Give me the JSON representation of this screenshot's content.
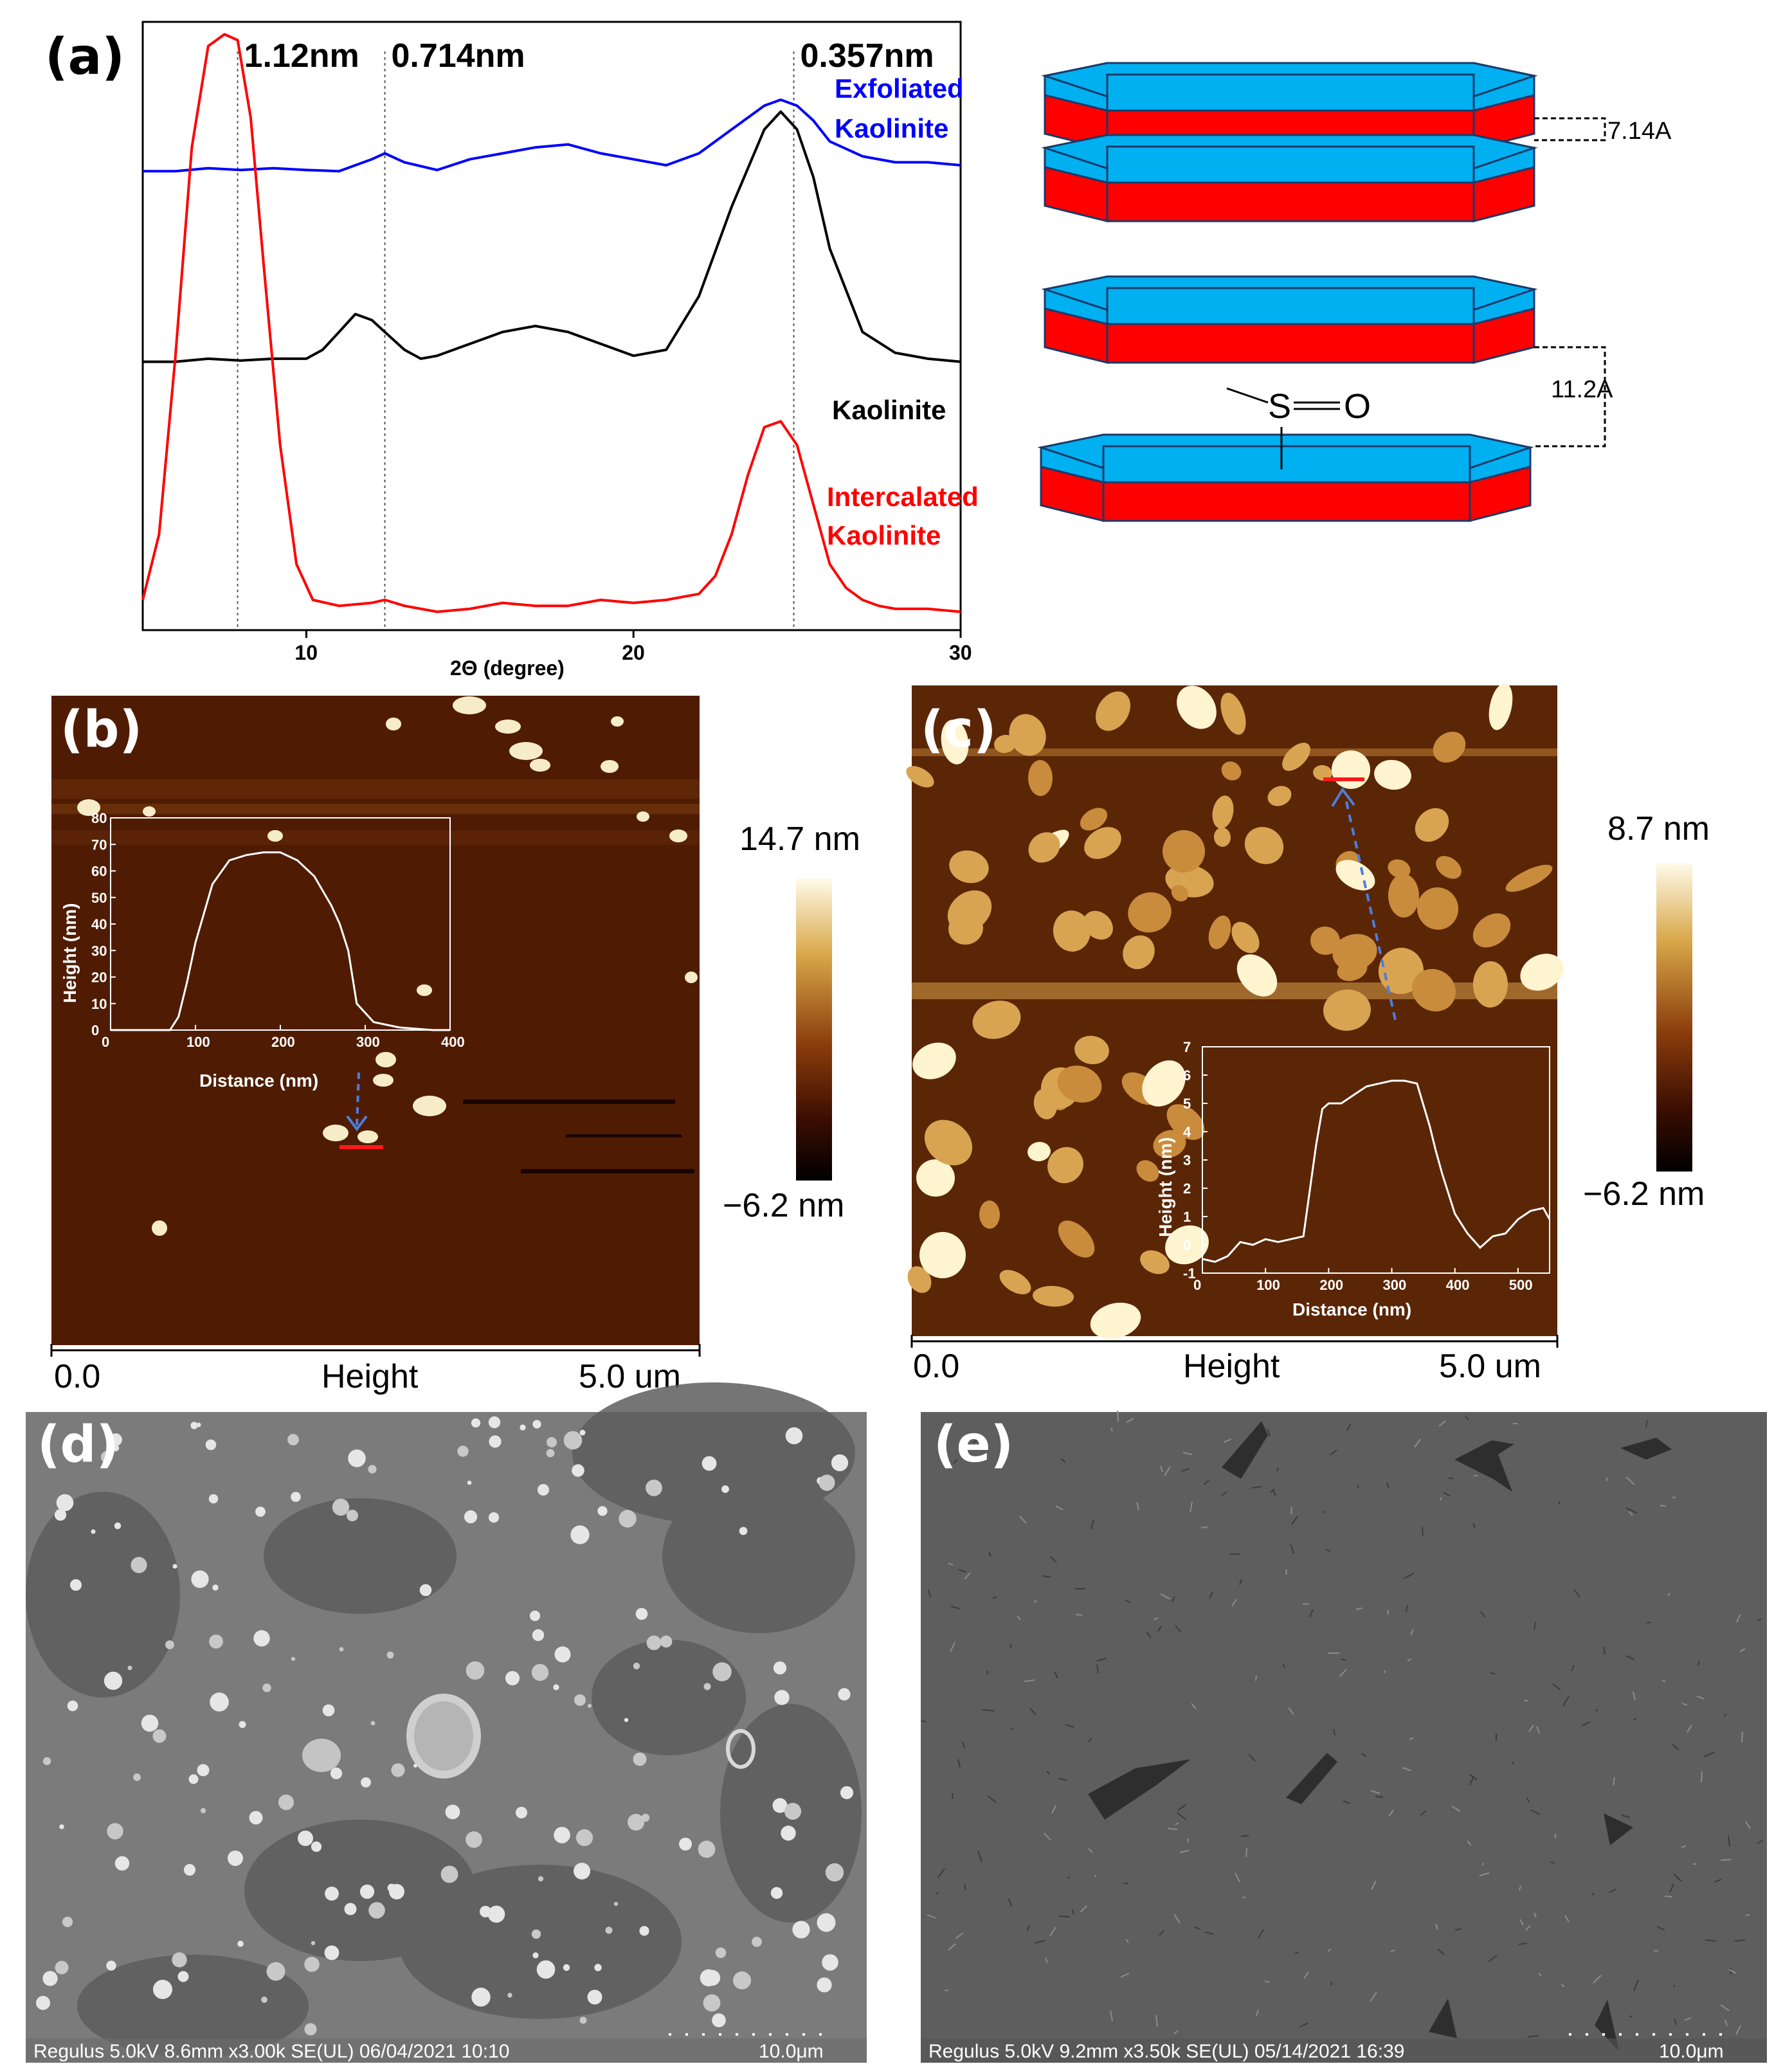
{
  "panels": {
    "a": "(a)",
    "b": "(b)",
    "c": "(c)",
    "d": "(d)",
    "e": "(e)"
  },
  "chart_data": [
    {
      "type": "line",
      "xlabel": "2Θ (degree)",
      "xlim": [
        5,
        30
      ],
      "x_ticks": [
        "10",
        "20",
        "30"
      ],
      "peak_labels": [
        "1.12nm",
        "0.714nm",
        "0.357nm"
      ],
      "peak_positions": [
        7.9,
        12.4,
        24.9
      ],
      "series": [
        {
          "name": "Exfoliated Kaolinite",
          "color": "#0000ff",
          "x": [
            5,
            6,
            7,
            8,
            9,
            10,
            11,
            12,
            12.4,
            13,
            14,
            15,
            16,
            17,
            18,
            19,
            20,
            21,
            22,
            23,
            24,
            24.5,
            25,
            25.5,
            26,
            27,
            28,
            29,
            30
          ],
          "y": [
            0.76,
            0.76,
            0.765,
            0.762,
            0.765,
            0.762,
            0.76,
            0.78,
            0.79,
            0.775,
            0.762,
            0.78,
            0.79,
            0.8,
            0.805,
            0.79,
            0.78,
            0.77,
            0.79,
            0.83,
            0.87,
            0.88,
            0.87,
            0.845,
            0.81,
            0.785,
            0.775,
            0.775,
            0.77
          ]
        },
        {
          "name": "Kaolinite",
          "color": "#000000",
          "x": [
            5,
            6,
            7,
            8,
            9,
            10,
            10.5,
            11,
            11.5,
            12,
            12.4,
            13,
            13.5,
            14,
            15,
            16,
            17,
            18,
            19,
            20,
            21,
            22,
            23,
            24,
            24.5,
            25,
            25.5,
            26,
            27,
            28,
            29,
            30
          ],
          "y": [
            0.44,
            0.44,
            0.445,
            0.442,
            0.445,
            0.445,
            0.46,
            0.49,
            0.52,
            0.51,
            0.49,
            0.46,
            0.445,
            0.45,
            0.47,
            0.49,
            0.5,
            0.49,
            0.47,
            0.45,
            0.46,
            0.55,
            0.7,
            0.83,
            0.86,
            0.83,
            0.75,
            0.63,
            0.49,
            0.455,
            0.445,
            0.44
          ]
        },
        {
          "name": "Intercalated Kaolinite",
          "color": "#ff0000",
          "x": [
            5,
            5.5,
            6,
            6.5,
            7,
            7.5,
            7.9,
            8.3,
            8.7,
            9.2,
            9.7,
            10.2,
            11,
            12,
            12.4,
            13,
            14,
            15,
            16,
            17,
            18,
            19,
            20,
            21,
            22,
            22.5,
            23,
            23.5,
            24,
            24.5,
            25,
            25.5,
            26,
            26.5,
            27,
            27.5,
            28,
            29,
            30
          ],
          "y": [
            0.04,
            0.15,
            0.45,
            0.8,
            0.97,
            0.99,
            0.98,
            0.85,
            0.6,
            0.3,
            0.1,
            0.04,
            0.03,
            0.035,
            0.04,
            0.03,
            0.02,
            0.025,
            0.035,
            0.03,
            0.03,
            0.04,
            0.035,
            0.04,
            0.05,
            0.08,
            0.15,
            0.25,
            0.33,
            0.34,
            0.3,
            0.2,
            0.1,
            0.06,
            0.04,
            0.03,
            0.025,
            0.025,
            0.02
          ]
        }
      ]
    },
    {
      "type": "line",
      "panel": "b-inset",
      "xlabel": "Distance (nm)",
      "ylabel": "Height (nm)",
      "xlim": [
        0,
        400
      ],
      "ylim": [
        0,
        80
      ],
      "x_ticks": [
        "0",
        "100",
        "200",
        "300",
        "400"
      ],
      "y_ticks": [
        "0",
        "10",
        "20",
        "30",
        "40",
        "50",
        "60",
        "70",
        "80"
      ],
      "x": [
        0,
        40,
        70,
        80,
        90,
        100,
        120,
        140,
        160,
        180,
        200,
        220,
        240,
        260,
        270,
        280,
        290,
        310,
        340,
        380,
        400
      ],
      "y": [
        0,
        0,
        0,
        5,
        18,
        33,
        55,
        64,
        66,
        67,
        67,
        64,
        58,
        47,
        40,
        30,
        10,
        3,
        1,
        0,
        0
      ]
    },
    {
      "type": "line",
      "panel": "c-inset",
      "xlabel": "Distance (nm)",
      "ylabel": "Height (nm)",
      "xlim": [
        0,
        550
      ],
      "ylim": [
        -1,
        7
      ],
      "x_ticks": [
        "0",
        "100",
        "200",
        "300",
        "400",
        "500"
      ],
      "y_ticks": [
        "-1",
        "0",
        "1",
        "2",
        "3",
        "4",
        "5",
        "6",
        "7"
      ],
      "x": [
        0,
        20,
        40,
        60,
        80,
        100,
        120,
        140,
        160,
        180,
        190,
        200,
        220,
        240,
        260,
        280,
        300,
        320,
        340,
        360,
        370,
        380,
        390,
        400,
        420,
        440,
        460,
        480,
        500,
        520,
        540,
        550
      ],
      "y": [
        -0.5,
        -0.6,
        -0.4,
        0.1,
        0.0,
        0.2,
        0.1,
        0.2,
        0.3,
        3.5,
        4.8,
        5.0,
        5.0,
        5.3,
        5.6,
        5.7,
        5.8,
        5.8,
        5.7,
        4.2,
        3.3,
        2.5,
        1.8,
        1.1,
        0.4,
        -0.1,
        0.3,
        0.4,
        0.9,
        1.2,
        1.3,
        0.9
      ]
    }
  ],
  "series_labels": {
    "exfoliated": [
      "Exfoliated",
      "Kaolinite"
    ],
    "kaolinite": "Kaolinite",
    "intercalated": [
      "Intercalated",
      "Kaolinite"
    ]
  },
  "diagram": {
    "spacing_top": "7.14A",
    "spacing_bottom": "11.2A",
    "s_label": "S",
    "o_label": "O",
    "colors": {
      "top_layer": "#00b0f0",
      "bottom_layer": "#ff0000"
    }
  },
  "afm_b": {
    "scale_max": "14.7 nm",
    "scale_min": "−6.2 nm",
    "foot_left": "0.0",
    "foot_mid": "Height",
    "foot_right": "5.0 um"
  },
  "afm_c": {
    "scale_max": "8.7 nm",
    "scale_min": "−6.2 nm",
    "foot_left": "0.0",
    "foot_mid": "Height",
    "foot_right": "5.0 um"
  },
  "sem_d": {
    "caption": "Regulus 5.0kV 8.6mm x3.00k SE(UL) 06/04/2021 10:10",
    "scale": "10.0μm"
  },
  "sem_e": {
    "caption": "Regulus 5.0kV 9.2mm x3.50k SE(UL) 05/14/2021 16:39",
    "scale": "10.0μm"
  }
}
